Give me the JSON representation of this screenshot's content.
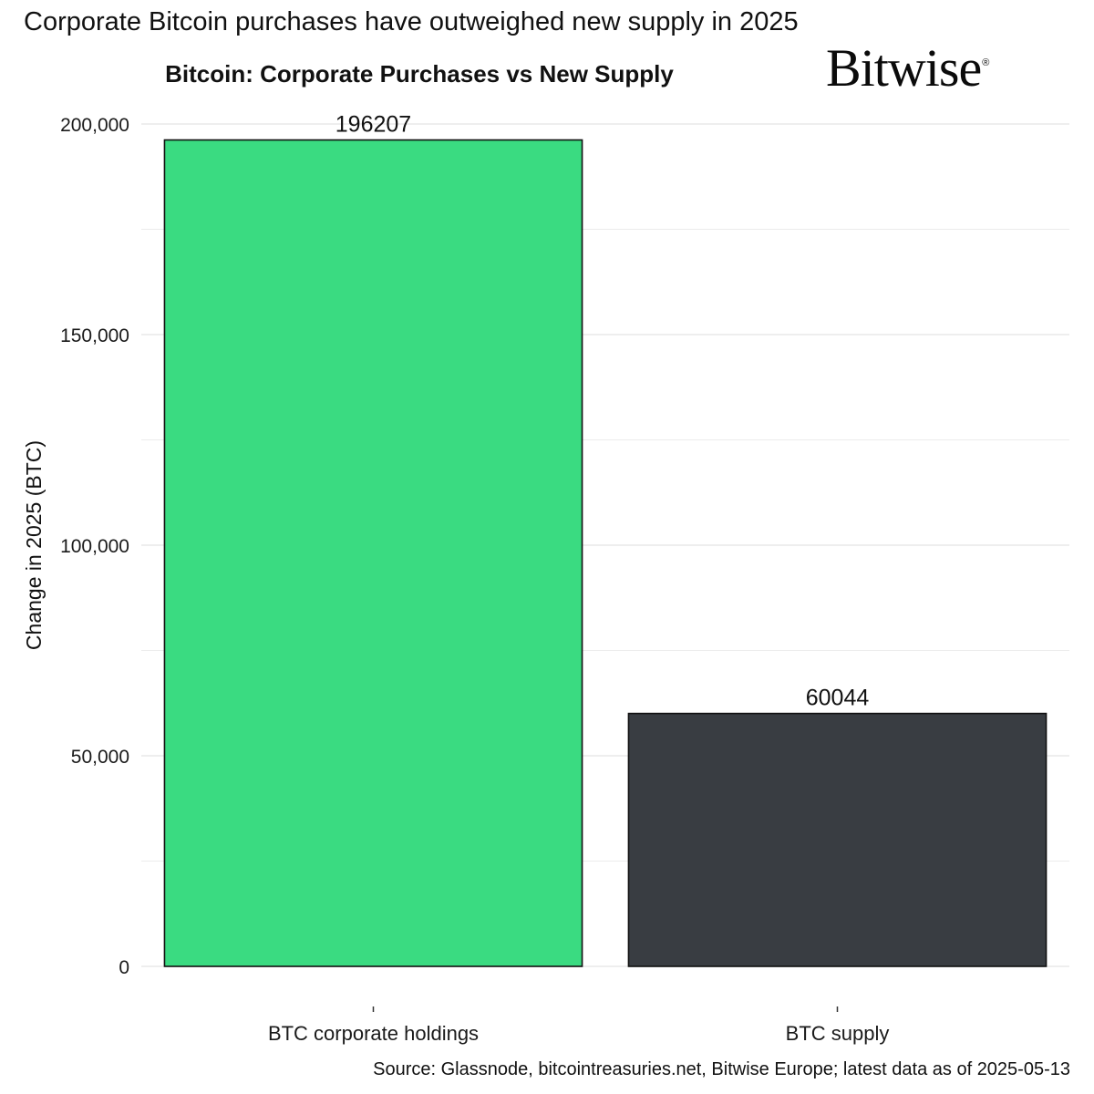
{
  "headline": "Corporate Bitcoin purchases have outweighed new supply in 2025",
  "logo_text": "Bitwise",
  "logo_mark": "®",
  "source": "Source: Glassnode, bitcointreasuries.net, Bitwise Europe; latest data as of 2025-05-13",
  "chart_data": {
    "type": "bar",
    "title": "Bitcoin: Corporate Purchases vs New Supply",
    "xlabel": "",
    "ylabel": "Change in 2025 (BTC)",
    "categories": [
      "BTC corporate holdings",
      "BTC supply"
    ],
    "values": [
      196207,
      60044
    ],
    "data_labels": [
      "196207",
      "60044"
    ],
    "colors": [
      "#3ADB81",
      "#393D42"
    ],
    "ylim": [
      0,
      200000
    ],
    "yticks": [
      0,
      50000,
      100000,
      150000,
      200000
    ],
    "ytick_labels": [
      "0",
      "50,000",
      "100,000",
      "150,000",
      "200,000"
    ],
    "grid": true,
    "legend": "none"
  }
}
